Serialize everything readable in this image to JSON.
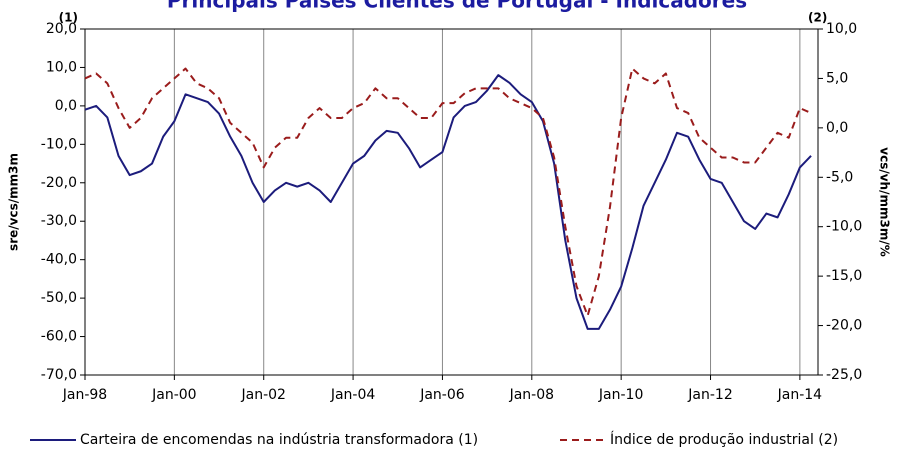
{
  "chart_data": {
    "type": "line",
    "title": "Principais Países Clientes de Portugal - Indicadores",
    "left_note": "(1)",
    "right_note": "(2)",
    "ylabel": "sre/vcs/mm3m",
    "y2label": "vcs/vh/mm3m/%",
    "categories": [
      "Jan-98",
      null,
      null,
      null,
      null,
      null,
      null,
      null,
      "Jan-00",
      null,
      null,
      null,
      null,
      null,
      null,
      null,
      "Jan-02",
      null,
      null,
      null,
      null,
      null,
      null,
      null,
      "Jan-04",
      null,
      null,
      null,
      null,
      null,
      null,
      null,
      "Jan-06",
      null,
      null,
      null,
      null,
      null,
      null,
      null,
      "Jan-08",
      null,
      null,
      null,
      null,
      null,
      null,
      null,
      "Jan-10",
      null,
      null,
      null,
      null,
      null,
      null,
      null,
      "Jan-12",
      null,
      null,
      null,
      null,
      null,
      null,
      null,
      "Jan-14",
      null
    ],
    "series": [
      {
        "name": "Carteira de encomendas na indústria transformadora (1)",
        "color": "#1c1c7c",
        "axis": "y",
        "values": [
          -1,
          0,
          -3,
          -13,
          -18,
          -17,
          -15,
          -8,
          -4,
          3,
          2,
          1,
          -2,
          -8,
          -13,
          -20,
          -25,
          -22,
          -20,
          -21,
          -20,
          -22,
          -25,
          -20,
          -15,
          -13,
          -9,
          -6.5,
          -7,
          -11,
          -16,
          -14,
          -12,
          -3,
          0,
          1,
          4,
          8,
          6,
          3,
          1,
          -4,
          -15,
          -35,
          -50,
          -58,
          -58,
          -53,
          -47,
          -37,
          -26,
          -20,
          -14,
          -7,
          -8,
          -14,
          -19,
          -20,
          -25,
          -30,
          -32,
          -28,
          -29,
          -23,
          -16,
          -13
        ]
      },
      {
        "name": "Índice de produção industrial (2)",
        "color": "#9a1c1c",
        "axis": "y2",
        "values": [
          5,
          5.5,
          4.5,
          2,
          0,
          1,
          3,
          4,
          5,
          6,
          4.5,
          4,
          3,
          0.5,
          -0.5,
          -1.5,
          -4,
          -2,
          -1,
          -1,
          1,
          2,
          1,
          1,
          2,
          2.5,
          4,
          3,
          3,
          2,
          1,
          1,
          2.5,
          2.5,
          3.5,
          4,
          4,
          4,
          3,
          2.5,
          2,
          1,
          -3,
          -10,
          -16,
          -19,
          -15,
          -8,
          1,
          6,
          5,
          4.5,
          5.5,
          2,
          1.5,
          -1,
          -2,
          -3,
          -3,
          -3.5,
          -3.5,
          -2,
          -0.5,
          -1,
          2,
          1.5
        ]
      }
    ],
    "ylim": [
      -70,
      20
    ],
    "yticks": [
      {
        "value": -70,
        "label": "-70,0"
      },
      {
        "value": -60,
        "label": "-60,0"
      },
      {
        "value": -50,
        "label": "-50,0"
      },
      {
        "value": -40,
        "label": "-40,0"
      },
      {
        "value": -30,
        "label": "-30,0"
      },
      {
        "value": -20,
        "label": "-20,0"
      },
      {
        "value": -10,
        "label": "-10,0"
      },
      {
        "value": 0,
        "label": "0,0"
      },
      {
        "value": 10,
        "label": "10,0"
      },
      {
        "value": 20,
        "label": "20,0"
      }
    ],
    "y2lim": [
      -25,
      10
    ],
    "y2ticks": [
      {
        "value": -25,
        "label": "-25,0"
      },
      {
        "value": -20,
        "label": "-20,0"
      },
      {
        "value": -15,
        "label": "-15,0"
      },
      {
        "value": -10,
        "label": "-10,0"
      },
      {
        "value": -5,
        "label": "-5,0"
      },
      {
        "value": 0,
        "label": "0,0"
      },
      {
        "value": 5,
        "label": "5,0"
      },
      {
        "value": 10,
        "label": "10,0"
      }
    ],
    "grid": true
  }
}
